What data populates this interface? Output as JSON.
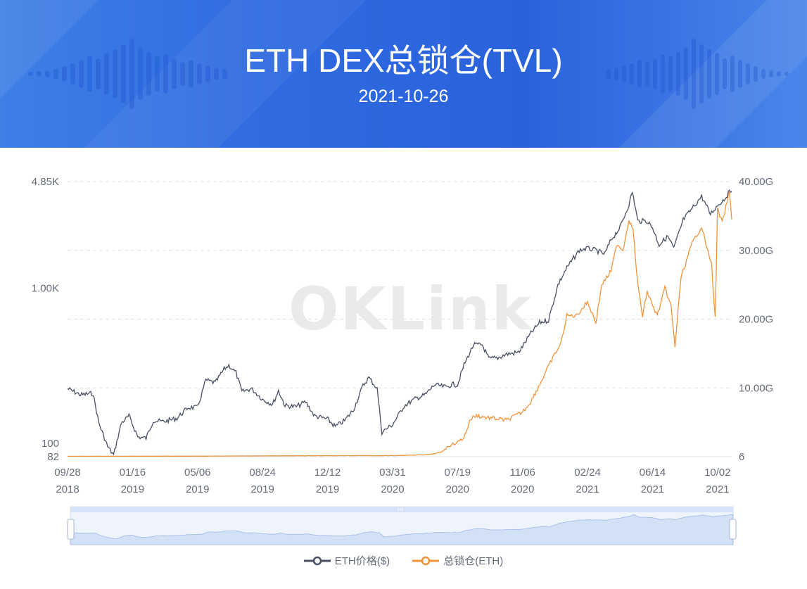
{
  "header": {
    "title": "ETH DEX总锁仓(TVL)",
    "date": "2021-10-26"
  },
  "watermark": "OKLink",
  "legend": [
    {
      "label": "ETH价格($)",
      "color": "#4a5063"
    },
    {
      "label": "总锁仓(ETH)",
      "color": "#f0943b"
    }
  ],
  "colors": {
    "banner": "#2f6ae0",
    "price": "#4a5063",
    "tvl": "#f0943b",
    "slider": "#dbe6f8"
  },
  "chart_data": {
    "type": "line",
    "title": "ETH DEX总锁仓(TVL)",
    "x_tick_labels": [
      [
        "09/28",
        "2018"
      ],
      [
        "01/16",
        "2019"
      ],
      [
        "05/06",
        "2019"
      ],
      [
        "08/24",
        "2019"
      ],
      [
        "12/12",
        "2019"
      ],
      [
        "03/31",
        "2020"
      ],
      [
        "07/19",
        "2020"
      ],
      [
        "11/06",
        "2020"
      ],
      [
        "02/24",
        "2021"
      ],
      [
        "06/14",
        "2021"
      ],
      [
        "10/02",
        "2021"
      ]
    ],
    "y_left": {
      "scale": "log",
      "ticks": [
        "4.85K",
        "1.00K",
        "100",
        "82"
      ],
      "range": [
        82,
        4850
      ]
    },
    "y_right": {
      "scale": "linear",
      "ticks": [
        "40.00G",
        "30.00G",
        "20.00G",
        "10.00G",
        "6"
      ],
      "range": [
        6,
        40000000000
      ]
    },
    "series": [
      {
        "name": "ETH价格($)",
        "axis": "left",
        "points": [
          [
            "2018-09-28",
            225
          ],
          [
            "2018-10-20",
            205
          ],
          [
            "2018-11-10",
            210
          ],
          [
            "2018-11-20",
            135
          ],
          [
            "2018-12-05",
            95
          ],
          [
            "2018-12-15",
            84
          ],
          [
            "2018-12-28",
            135
          ],
          [
            "2019-01-10",
            150
          ],
          [
            "2019-01-25",
            110
          ],
          [
            "2019-02-08",
            108
          ],
          [
            "2019-02-20",
            140
          ],
          [
            "2019-03-10",
            138
          ],
          [
            "2019-04-01",
            145
          ],
          [
            "2019-04-20",
            170
          ],
          [
            "2019-05-06",
            170
          ],
          [
            "2019-05-20",
            255
          ],
          [
            "2019-06-05",
            245
          ],
          [
            "2019-06-20",
            300
          ],
          [
            "2019-06-28",
            318
          ],
          [
            "2019-07-10",
            285
          ],
          [
            "2019-07-20",
            215
          ],
          [
            "2019-08-05",
            225
          ],
          [
            "2019-08-24",
            192
          ],
          [
            "2019-09-10",
            178
          ],
          [
            "2019-09-20",
            218
          ],
          [
            "2019-10-01",
            175
          ],
          [
            "2019-10-20",
            172
          ],
          [
            "2019-11-05",
            185
          ],
          [
            "2019-11-20",
            150
          ],
          [
            "2019-12-12",
            143
          ],
          [
            "2019-12-25",
            128
          ],
          [
            "2020-01-10",
            140
          ],
          [
            "2020-01-25",
            165
          ],
          [
            "2020-02-10",
            235
          ],
          [
            "2020-02-20",
            265
          ],
          [
            "2020-03-05",
            225
          ],
          [
            "2020-03-13",
            118
          ],
          [
            "2020-03-31",
            132
          ],
          [
            "2020-04-20",
            175
          ],
          [
            "2020-05-10",
            195
          ],
          [
            "2020-05-25",
            205
          ],
          [
            "2020-06-10",
            238
          ],
          [
            "2020-06-30",
            230
          ],
          [
            "2020-07-10",
            240
          ],
          [
            "2020-07-19",
            238
          ],
          [
            "2020-07-30",
            320
          ],
          [
            "2020-08-15",
            430
          ],
          [
            "2020-08-30",
            430
          ],
          [
            "2020-09-10",
            350
          ],
          [
            "2020-09-25",
            355
          ],
          [
            "2020-10-10",
            375
          ],
          [
            "2020-10-30",
            385
          ],
          [
            "2020-11-06",
            420
          ],
          [
            "2020-11-20",
            510
          ],
          [
            "2020-12-05",
            600
          ],
          [
            "2020-12-20",
            620
          ],
          [
            "2021-01-05",
            1050
          ],
          [
            "2021-01-20",
            1350
          ],
          [
            "2021-02-10",
            1750
          ],
          [
            "2021-02-24",
            1800
          ],
          [
            "2021-03-10",
            1750
          ],
          [
            "2021-03-25",
            1650
          ],
          [
            "2021-04-05",
            2050
          ],
          [
            "2021-04-20",
            2450
          ],
          [
            "2021-05-05",
            3450
          ],
          [
            "2021-05-11",
            4170
          ],
          [
            "2021-05-20",
            2700
          ],
          [
            "2021-06-05",
            2700
          ],
          [
            "2021-06-14",
            2450
          ],
          [
            "2021-06-25",
            1900
          ],
          [
            "2021-07-10",
            2150
          ],
          [
            "2021-07-20",
            1800
          ],
          [
            "2021-08-05",
            2750
          ],
          [
            "2021-08-20",
            3250
          ],
          [
            "2021-09-05",
            3900
          ],
          [
            "2021-09-20",
            3000
          ],
          [
            "2021-10-02",
            3400
          ],
          [
            "2021-10-15",
            3800
          ],
          [
            "2021-10-22",
            4150
          ],
          [
            "2021-10-26",
            4200
          ]
        ]
      },
      {
        "name": "总锁仓(ETH)",
        "axis": "right",
        "points": [
          [
            "2018-09-28",
            0.06
          ],
          [
            "2019-05-06",
            0.08
          ],
          [
            "2019-12-12",
            0.15
          ],
          [
            "2020-03-31",
            0.15
          ],
          [
            "2020-06-01",
            0.3
          ],
          [
            "2020-06-20",
            0.6
          ],
          [
            "2020-07-05",
            1.6
          ],
          [
            "2020-07-19",
            2.1
          ],
          [
            "2020-07-30",
            2.8
          ],
          [
            "2020-08-10",
            5.5
          ],
          [
            "2020-08-20",
            6.0
          ],
          [
            "2020-09-05",
            5.7
          ],
          [
            "2020-09-25",
            5.5
          ],
          [
            "2020-10-10",
            5.3
          ],
          [
            "2020-10-30",
            6.2
          ],
          [
            "2020-11-06",
            6.5
          ],
          [
            "2020-11-20",
            8.0
          ],
          [
            "2020-12-05",
            10.5
          ],
          [
            "2020-12-25",
            14.0
          ],
          [
            "2021-01-10",
            16.5
          ],
          [
            "2021-01-20",
            20.5
          ],
          [
            "2021-02-05",
            20.5
          ],
          [
            "2021-02-24",
            22.5
          ],
          [
            "2021-03-10",
            19.5
          ],
          [
            "2021-03-20",
            25.0
          ],
          [
            "2021-04-05",
            27.0
          ],
          [
            "2021-04-15",
            31.0
          ],
          [
            "2021-04-25",
            30.0
          ],
          [
            "2021-05-05",
            34.5
          ],
          [
            "2021-05-12",
            33.0
          ],
          [
            "2021-05-20",
            25.0
          ],
          [
            "2021-05-28",
            20.5
          ],
          [
            "2021-06-05",
            24.0
          ],
          [
            "2021-06-14",
            22.0
          ],
          [
            "2021-06-22",
            20.5
          ],
          [
            "2021-07-05",
            24.5
          ],
          [
            "2021-07-15",
            22.0
          ],
          [
            "2021-07-22",
            16.0
          ],
          [
            "2021-08-01",
            26.0
          ],
          [
            "2021-08-20",
            31.0
          ],
          [
            "2021-09-05",
            33.5
          ],
          [
            "2021-09-15",
            30.0
          ],
          [
            "2021-09-22",
            28.0
          ],
          [
            "2021-09-28",
            20.0
          ],
          [
            "2021-10-02",
            36.0
          ],
          [
            "2021-10-10",
            34.0
          ],
          [
            "2021-10-18",
            37.0
          ],
          [
            "2021-10-22",
            38.5
          ],
          [
            "2021-10-26",
            34.5
          ]
        ]
      }
    ],
    "grid": true,
    "legend_position": "bottom-center",
    "data_zoom_slider": true
  }
}
